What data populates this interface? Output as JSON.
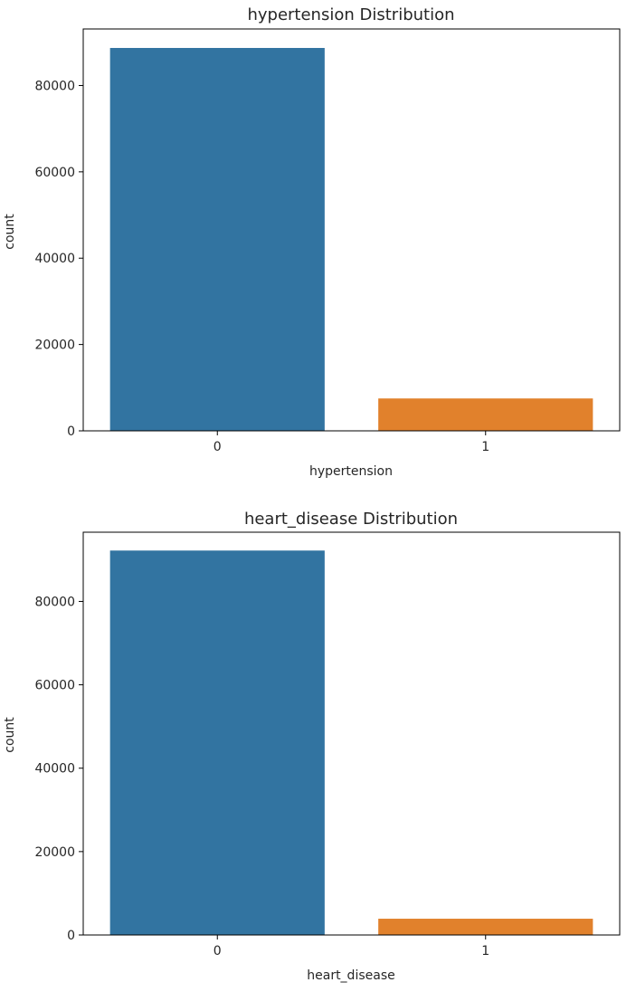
{
  "chart_data": [
    {
      "type": "bar",
      "title": "hypertension Distribution",
      "xlabel": "hypertension",
      "ylabel": "count",
      "categories": [
        "0",
        "1"
      ],
      "values": [
        88700,
        7500
      ],
      "colors": [
        "#3274a1",
        "#e1812c"
      ],
      "yticks": [
        0,
        20000,
        40000,
        60000,
        80000
      ],
      "ytick_labels": [
        "0",
        "20000",
        "40000",
        "60000",
        "80000"
      ],
      "ylim": [
        0,
        93100
      ],
      "grid": false,
      "legend": "none"
    },
    {
      "type": "bar",
      "title": "heart_disease Distribution",
      "xlabel": "heart_disease",
      "ylabel": "count",
      "categories": [
        "0",
        "1"
      ],
      "values": [
        92200,
        3900
      ],
      "colors": [
        "#3274a1",
        "#e1812c"
      ],
      "yticks": [
        0,
        20000,
        40000,
        60000,
        80000
      ],
      "ytick_labels": [
        "0",
        "20000",
        "40000",
        "60000",
        "80000"
      ],
      "ylim": [
        0,
        96600
      ],
      "grid": false,
      "legend": "none"
    }
  ]
}
